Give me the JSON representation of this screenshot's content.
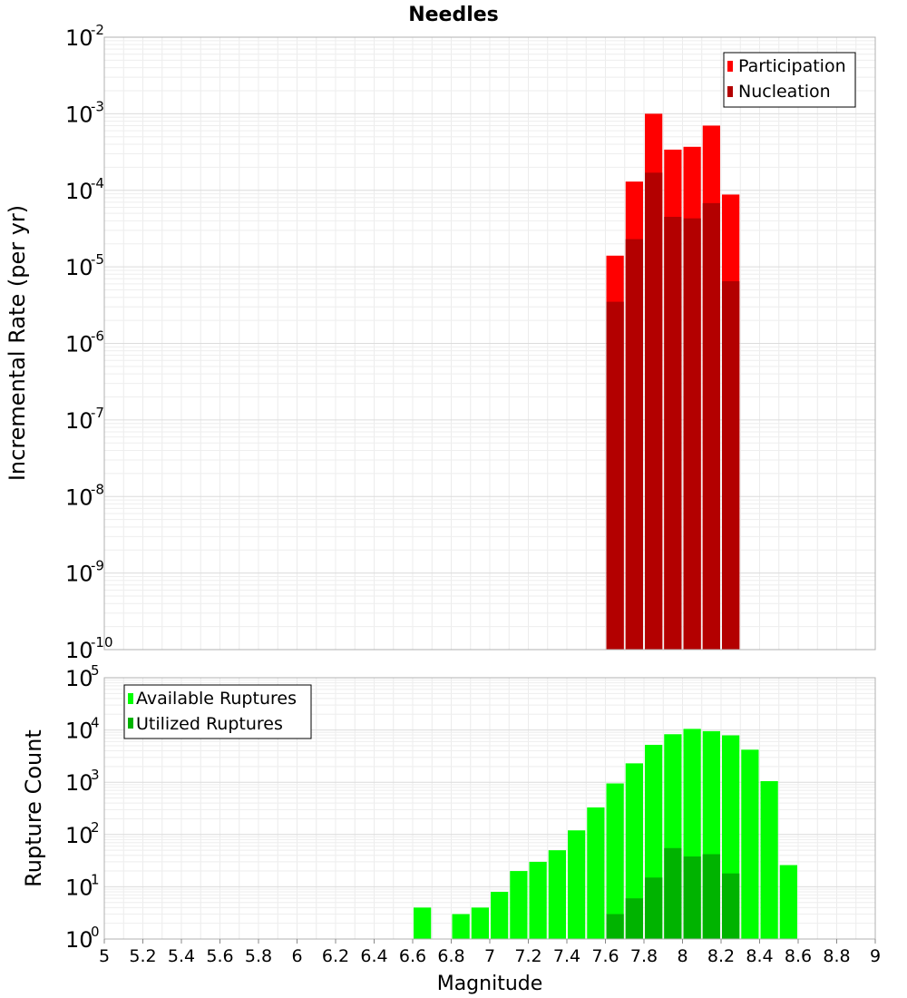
{
  "chart_data": [
    {
      "type": "bar",
      "title": "Needles",
      "xlabel": "",
      "ylabel": "Incremental Rate (per yr)",
      "yscale": "log",
      "ylim": [
        1e-10,
        0.01
      ],
      "xlim": [
        5,
        9
      ],
      "bin_width": 0.1,
      "legend_position": "top-right",
      "y_ticks": [
        {
          "base": "10",
          "exp": "-2"
        },
        {
          "base": "10",
          "exp": "-3"
        },
        {
          "base": "10",
          "exp": "-4"
        },
        {
          "base": "10",
          "exp": "-5"
        },
        {
          "base": "10",
          "exp": "-6"
        },
        {
          "base": "10",
          "exp": "-7"
        },
        {
          "base": "10",
          "exp": "-8"
        },
        {
          "base": "10",
          "exp": "-9"
        },
        {
          "base": "10",
          "exp": "-10"
        }
      ],
      "series": [
        {
          "name": "Participation",
          "color": "#ff0000",
          "x": [
            7.65,
            7.75,
            7.85,
            7.95,
            8.05,
            8.15,
            8.25
          ],
          "values": [
            1.4e-05,
            0.00013,
            0.001,
            0.00034,
            0.00037,
            0.0007,
            8.8e-05
          ]
        },
        {
          "name": "Nucleation",
          "color": "#b30000",
          "x": [
            7.65,
            7.75,
            7.85,
            7.95,
            8.05,
            8.15,
            8.25
          ],
          "values": [
            3.5e-06,
            2.3e-05,
            0.00017,
            4.5e-05,
            4.3e-05,
            6.8e-05,
            6.5e-06
          ]
        }
      ]
    },
    {
      "type": "bar",
      "title": "",
      "xlabel": "Magnitude",
      "ylabel": "Rupture Count",
      "yscale": "log",
      "ylim": [
        1,
        100000.0
      ],
      "xlim": [
        5,
        9
      ],
      "bin_width": 0.1,
      "legend_position": "top-left",
      "x_ticks": [
        "5",
        "5.2",
        "5.4",
        "5.6",
        "5.8",
        "6",
        "6.2",
        "6.4",
        "6.6",
        "6.8",
        "7",
        "7.2",
        "7.4",
        "7.6",
        "7.8",
        "8",
        "8.2",
        "8.4",
        "8.6",
        "8.8",
        "9"
      ],
      "y_ticks": [
        {
          "base": "10",
          "exp": "5"
        },
        {
          "base": "10",
          "exp": "4"
        },
        {
          "base": "10",
          "exp": "3"
        },
        {
          "base": "10",
          "exp": "2"
        },
        {
          "base": "10",
          "exp": "1"
        },
        {
          "base": "10",
          "exp": "0"
        }
      ],
      "series": [
        {
          "name": "Available Ruptures",
          "color": "#00ff00",
          "x": [
            6.65,
            6.85,
            6.95,
            7.05,
            7.15,
            7.25,
            7.35,
            7.45,
            7.55,
            7.65,
            7.75,
            7.85,
            7.95,
            8.05,
            8.15,
            8.25,
            8.35,
            8.45,
            8.55
          ],
          "values": [
            4,
            3,
            4,
            8,
            20,
            30,
            50,
            120,
            330,
            950,
            2300,
            5200,
            8300,
            10500,
            9500,
            7900,
            4200,
            1050,
            26
          ]
        },
        {
          "name": "Utilized Ruptures",
          "color": "#00b300",
          "x": [
            7.65,
            7.75,
            7.85,
            7.95,
            8.05,
            8.15,
            8.25
          ],
          "values": [
            3,
            6,
            15,
            55,
            38,
            42,
            18
          ]
        }
      ]
    }
  ]
}
